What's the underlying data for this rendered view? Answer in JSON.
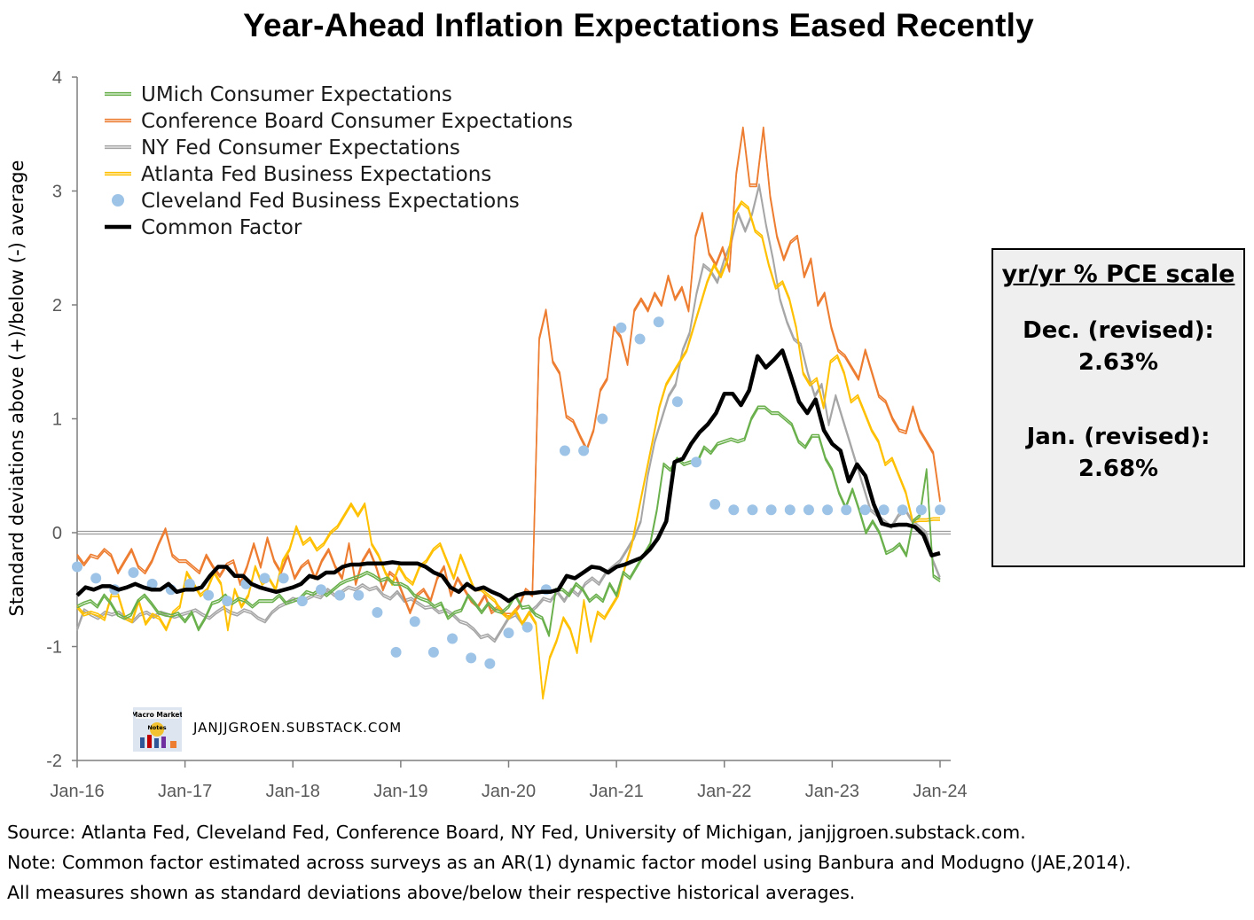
{
  "title": "Year-Ahead Inflation Expectations Eased Recently",
  "chart_data": {
    "type": "line",
    "ylabel": "Standard deviations above (+)/below (-) average",
    "ylim": [
      -2,
      4
    ],
    "yticks": [
      "-2",
      "-1",
      "0",
      "1",
      "2",
      "3",
      "4"
    ],
    "x_start": "Jan-16",
    "x_end": "Jan-24",
    "xticks": [
      "Jan-16",
      "Jan-17",
      "Jan-18",
      "Jan-19",
      "Jan-20",
      "Jan-21",
      "Jan-22",
      "Jan-23",
      "Jan-24"
    ],
    "legend_position": "top-left",
    "series": [
      {
        "name": "UMich Consumer Expectations",
        "style": "double-line",
        "color": "#6ab04c",
        "values": [
          -0.65,
          -0.62,
          -0.6,
          -0.65,
          -0.55,
          -0.62,
          -0.72,
          -0.75,
          -0.72,
          -0.6,
          -0.55,
          -0.62,
          -0.7,
          -0.72,
          -0.73,
          -0.71,
          -0.78,
          -0.7,
          -0.85,
          -0.75,
          -0.62,
          -0.6,
          -0.55,
          -0.62,
          -0.58,
          -0.6,
          -0.65,
          -0.6,
          -0.6,
          -0.6,
          -0.55,
          -0.62,
          -0.6,
          -0.58,
          -0.52,
          -0.54,
          -0.5,
          -0.55,
          -0.5,
          -0.45,
          -0.42,
          -0.4,
          -0.38,
          -0.35,
          -0.38,
          -0.42,
          -0.4,
          -0.45,
          -0.45,
          -0.48,
          -0.55,
          -0.58,
          -0.6,
          -0.65,
          -0.62,
          -0.75,
          -0.7,
          -0.68,
          -0.55,
          -0.62,
          -0.7,
          -0.62,
          -0.68,
          -0.7,
          -0.65,
          -0.55,
          -0.66,
          -0.65,
          -0.72,
          -0.75,
          -0.9,
          -0.5,
          -0.5,
          -0.55,
          -0.45,
          -0.5,
          -0.6,
          -0.55,
          -0.6,
          -0.45,
          -0.55,
          -0.35,
          -0.4,
          -0.3,
          -0.2,
          -0.1,
          0.2,
          0.6,
          0.55,
          0.65,
          0.6,
          0.62,
          0.62,
          0.75,
          0.7,
          0.78,
          0.8,
          0.82,
          0.8,
          0.82,
          1.0,
          1.1,
          1.1,
          1.05,
          1.05,
          1.0,
          0.95,
          0.8,
          0.75,
          0.85,
          0.85,
          0.65,
          0.55,
          0.35,
          0.22,
          0.38,
          0.2,
          0.0,
          0.1,
          0.0,
          -0.18,
          -0.15,
          -0.1,
          -0.2,
          0.1,
          0.15,
          0.55,
          -0.38,
          -0.42
        ]
      },
      {
        "name": "Conference Board Consumer Expectations",
        "style": "double-line",
        "color": "#ed7d31",
        "values": [
          -0.2,
          -0.28,
          -0.2,
          -0.22,
          -0.15,
          -0.2,
          -0.35,
          -0.25,
          -0.15,
          -0.3,
          -0.35,
          -0.25,
          -0.1,
          0.03,
          -0.2,
          -0.25,
          -0.25,
          -0.3,
          -0.35,
          -0.2,
          -0.3,
          -0.38,
          -0.28,
          -0.25,
          -0.45,
          -0.3,
          -0.1,
          -0.3,
          -0.05,
          -0.25,
          -0.35,
          -0.2,
          -0.4,
          -0.3,
          -0.25,
          -0.4,
          -0.25,
          -0.15,
          -0.3,
          -0.4,
          -0.1,
          -0.45,
          -0.25,
          -0.15,
          -0.3,
          -0.5,
          -0.35,
          -0.4,
          -0.55,
          -0.7,
          -0.55,
          -0.5,
          -0.6,
          -0.4,
          -0.3,
          -0.55,
          -0.4,
          -0.5,
          -0.6,
          -0.65,
          -0.55,
          -0.7,
          -0.65,
          -0.72,
          -0.72,
          -0.65,
          -0.5,
          -0.55,
          1.7,
          1.95,
          1.5,
          1.4,
          1.02,
          0.98,
          0.85,
          0.73,
          0.9,
          1.25,
          1.35,
          1.8,
          1.72,
          1.48,
          1.95,
          2.05,
          1.95,
          2.1,
          2.0,
          2.25,
          2.05,
          2.15,
          1.95,
          2.6,
          2.8,
          2.45,
          2.35,
          2.5,
          2.3,
          3.15,
          3.55,
          3.05,
          3.05,
          3.55,
          2.95,
          2.6,
          2.4,
          2.55,
          2.6,
          2.25,
          2.4,
          2.0,
          2.1,
          1.8,
          1.6,
          1.55,
          1.45,
          1.35,
          1.6,
          1.4,
          1.2,
          1.15,
          1.0,
          0.9,
          0.88,
          1.1,
          0.9,
          0.8,
          0.7,
          0.28
        ]
      },
      {
        "name": "NY Fed Consumer Expectations",
        "style": "double-line",
        "color": "#a6a6a6",
        "values": [
          -0.85,
          -0.68,
          -0.72,
          -0.75,
          -0.7,
          -0.72,
          -0.7,
          -0.75,
          -0.78,
          -0.72,
          -0.7,
          -0.74,
          -0.7,
          -0.72,
          -0.74,
          -0.72,
          -0.7,
          -0.68,
          -0.72,
          -0.75,
          -0.7,
          -0.66,
          -0.7,
          -0.72,
          -0.68,
          -0.7,
          -0.75,
          -0.78,
          -0.7,
          -0.65,
          -0.62,
          -0.58,
          -0.6,
          -0.58,
          -0.55,
          -0.57,
          -0.5,
          -0.55,
          -0.52,
          -0.48,
          -0.5,
          -0.46,
          -0.5,
          -0.48,
          -0.55,
          -0.58,
          -0.52,
          -0.6,
          -0.58,
          -0.62,
          -0.66,
          -0.65,
          -0.7,
          -0.68,
          -0.72,
          -0.78,
          -0.8,
          -0.85,
          -0.92,
          -0.9,
          -0.95,
          -0.85,
          -0.75,
          -0.72,
          -0.8,
          -0.7,
          -0.65,
          -0.58,
          -0.6,
          -0.52,
          -0.6,
          -0.5,
          -0.55,
          -0.45,
          -0.4,
          -0.45,
          -0.35,
          -0.3,
          -0.25,
          -0.15,
          -0.05,
          0.1,
          0.5,
          0.8,
          1.0,
          1.2,
          1.3,
          1.6,
          1.75,
          2.1,
          2.35,
          2.3,
          2.2,
          2.4,
          2.55,
          2.8,
          2.65,
          2.8,
          3.05,
          2.7,
          2.4,
          2.05,
          1.85,
          1.7,
          1.65,
          1.4,
          1.2,
          1.3,
          0.95,
          1.2,
          1.0,
          0.8,
          0.6,
          0.4,
          0.2,
          0.15,
          0.1,
          0.05,
          0.15,
          0.2,
          0.1,
          0.05,
          0.0,
          -0.25,
          -0.4
        ]
      },
      {
        "name": "Atlanta Fed Business Expectations",
        "style": "double-line",
        "color": "#ffc000",
        "values": [
          -0.65,
          -0.72,
          -0.7,
          -0.72,
          -0.76,
          -0.55,
          -0.55,
          -0.75,
          -0.78,
          -0.6,
          -0.8,
          -0.72,
          -0.75,
          -0.85,
          -0.7,
          -0.65,
          -0.35,
          -0.45,
          -0.55,
          -0.5,
          -0.35,
          -0.45,
          -0.85,
          -0.5,
          -0.65,
          -0.55,
          -0.3,
          -0.45,
          -0.4,
          -0.5,
          -0.25,
          -0.15,
          0.05,
          -0.1,
          -0.05,
          -0.15,
          -0.1,
          0.0,
          0.05,
          0.15,
          0.25,
          0.15,
          0.25,
          -0.1,
          -0.2,
          -0.35,
          -0.45,
          -0.3,
          -0.4,
          -0.45,
          -0.3,
          -0.25,
          -0.15,
          -0.1,
          -0.25,
          -0.4,
          -0.2,
          -0.35,
          -0.5,
          -0.5,
          -0.55,
          -0.6,
          -0.7,
          -0.75,
          -0.68,
          -0.8,
          -0.7,
          -0.8,
          -1.45,
          -1.1,
          -0.95,
          -0.75,
          -0.85,
          -1.05,
          -0.6,
          -0.95,
          -0.7,
          -0.75,
          -0.65,
          -0.55,
          -0.3,
          -0.1,
          0.2,
          0.5,
          0.8,
          1.1,
          1.3,
          1.4,
          1.5,
          1.6,
          1.8,
          2.0,
          2.2,
          2.35,
          2.25,
          2.4,
          2.8,
          2.9,
          2.85,
          2.65,
          2.6,
          2.35,
          2.15,
          2.2,
          2.05,
          1.8,
          1.4,
          1.3,
          1.35,
          1.1,
          1.5,
          1.55,
          1.4,
          1.15,
          1.2,
          1.05,
          0.9,
          0.8,
          0.6,
          0.65,
          0.5,
          0.35,
          0.1,
          0.11,
          0.11,
          0.12,
          0.12
        ]
      },
      {
        "name": "Cleveland Fed Business Expectations",
        "style": "markers",
        "color": "#9dc3e6",
        "x_index": [
          0,
          3,
          6,
          9,
          12,
          15,
          18,
          21,
          24,
          27,
          30,
          33,
          36,
          39,
          42,
          45,
          48,
          51,
          54,
          57,
          60,
          63,
          66,
          69,
          72,
          75,
          78,
          81,
          84,
          87,
          90,
          93,
          96,
          99,
          102,
          105,
          108,
          111,
          114,
          117,
          120,
          123,
          126,
          129,
          132,
          135,
          138
        ],
        "values": [
          -0.3,
          -0.4,
          -0.5,
          -0.35,
          -0.45,
          -0.5,
          -0.45,
          -0.55,
          -0.6,
          -0.45,
          -0.4,
          -0.4,
          -0.6,
          -0.5,
          -0.55,
          -0.55,
          -0.7,
          -1.05,
          -0.78,
          -1.05,
          -0.93,
          -1.1,
          -1.15,
          -0.88,
          -0.83,
          -0.5,
          0.72,
          0.72,
          1.0,
          1.8,
          1.7,
          1.85,
          1.15,
          0.62,
          0.25,
          0.2,
          0.2,
          0.2,
          0.2,
          0.2,
          0.2,
          0.2,
          0.2,
          0.2,
          0.2,
          0.2,
          0.2
        ]
      },
      {
        "name": "Common Factor",
        "style": "thick-line",
        "color": "#000000",
        "values": [
          -0.55,
          -0.48,
          -0.5,
          -0.47,
          -0.47,
          -0.5,
          -0.48,
          -0.45,
          -0.48,
          -0.5,
          -0.5,
          -0.45,
          -0.52,
          -0.5,
          -0.5,
          -0.48,
          -0.38,
          -0.3,
          -0.3,
          -0.38,
          -0.38,
          -0.45,
          -0.48,
          -0.5,
          -0.52,
          -0.5,
          -0.48,
          -0.45,
          -0.38,
          -0.4,
          -0.35,
          -0.35,
          -0.3,
          -0.28,
          -0.28,
          -0.27,
          -0.27,
          -0.27,
          -0.26,
          -0.27,
          -0.27,
          -0.27,
          -0.3,
          -0.35,
          -0.38,
          -0.48,
          -0.52,
          -0.45,
          -0.5,
          -0.48,
          -0.52,
          -0.55,
          -0.6,
          -0.55,
          -0.53,
          -0.53,
          -0.52,
          -0.52,
          -0.5,
          -0.38,
          -0.4,
          -0.35,
          -0.3,
          -0.31,
          -0.35,
          -0.3,
          -0.28,
          -0.25,
          -0.22,
          -0.15,
          -0.05,
          0.1,
          0.62,
          0.65,
          0.78,
          0.88,
          0.95,
          1.05,
          1.22,
          1.22,
          1.12,
          1.25,
          1.55,
          1.45,
          1.52,
          1.6,
          1.38,
          1.15,
          1.05,
          1.17,
          0.9,
          0.78,
          0.72,
          0.45,
          0.6,
          0.5,
          0.25,
          0.08,
          0.06,
          0.07,
          0.07,
          0.05,
          -0.02,
          -0.2,
          -0.18
        ]
      }
    ]
  },
  "scale_box": {
    "title": "yr/yr % PCE scale",
    "dec_label": "Dec. (revised):",
    "dec_value": "2.63%",
    "jan_label": "Jan. (revised):",
    "jan_value": "2.68%"
  },
  "watermark": "JANJJGROEN.SUBSTACK.COM",
  "logo_text": "Macro Market Notes",
  "footer": {
    "source": "Source: Atlanta Fed, Cleveland Fed, Conference Board, NY Fed, University of Michigan, janjjgroen.substack.com.",
    "note": "Note: Common factor estimated  across surveys as an AR(1) dynamic factor model using Banbura and Modugno (JAE,2014).",
    "measures": "All measures shown as standard deviations above/below their respective historical averages."
  }
}
